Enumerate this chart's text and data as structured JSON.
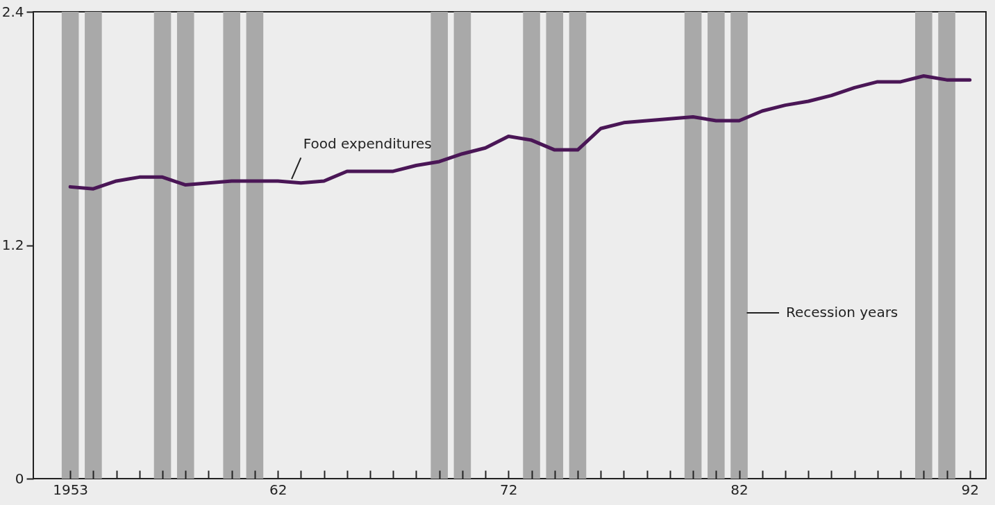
{
  "chart_data": {
    "type": "line",
    "x": [
      1953,
      1954,
      1955,
      1956,
      1957,
      1958,
      1959,
      1960,
      1961,
      1962,
      1963,
      1964,
      1965,
      1966,
      1967,
      1968,
      1969,
      1970,
      1971,
      1972,
      1973,
      1974,
      1975,
      1976,
      1977,
      1978,
      1979,
      1980,
      1981,
      1982,
      1983,
      1984,
      1985,
      1986,
      1987,
      1988,
      1989,
      1990,
      1991,
      1992
    ],
    "series": [
      {
        "name": "Food expenditures",
        "color": "#4a1656",
        "values": [
          1.5,
          1.49,
          1.53,
          1.55,
          1.55,
          1.51,
          1.52,
          1.53,
          1.53,
          1.53,
          1.52,
          1.53,
          1.58,
          1.58,
          1.58,
          1.61,
          1.63,
          1.67,
          1.7,
          1.76,
          1.74,
          1.69,
          1.69,
          1.8,
          1.83,
          1.84,
          1.85,
          1.86,
          1.84,
          1.84,
          1.89,
          1.92,
          1.94,
          1.97,
          2.01,
          2.04,
          2.04,
          2.07,
          2.05,
          2.05
        ]
      }
    ],
    "xlim": [
      1951.4,
      1992.7
    ],
    "xticks": [
      1953,
      {
        "value": 1954,
        "label": null
      },
      {
        "value": 1955,
        "label": null
      },
      {
        "value": 1956,
        "label": null
      },
      {
        "value": 1957,
        "label": null
      },
      {
        "value": 1958,
        "label": null
      },
      {
        "value": 1959,
        "label": null
      },
      {
        "value": 1960,
        "label": null
      },
      {
        "value": 1961,
        "label": null
      },
      {
        "value": 1962,
        "label": "62"
      },
      {
        "value": 1963,
        "label": null
      },
      {
        "value": 1964,
        "label": null
      },
      {
        "value": 1965,
        "label": null
      },
      {
        "value": 1966,
        "label": null
      },
      {
        "value": 1967,
        "label": null
      },
      {
        "value": 1968,
        "label": null
      },
      {
        "value": 1969,
        "label": null
      },
      {
        "value": 1970,
        "label": null
      },
      {
        "value": 1971,
        "label": null
      },
      {
        "value": 1972,
        "label": "72"
      },
      {
        "value": 1973,
        "label": null
      },
      {
        "value": 1974,
        "label": null
      },
      {
        "value": 1975,
        "label": null
      },
      {
        "value": 1976,
        "label": null
      },
      {
        "value": 1977,
        "label": null
      },
      {
        "value": 1978,
        "label": null
      },
      {
        "value": 1979,
        "label": null
      },
      {
        "value": 1980,
        "label": null
      },
      {
        "value": 1981,
        "label": null
      },
      {
        "value": 1982,
        "label": "82"
      },
      {
        "value": 1983,
        "label": null
      },
      {
        "value": 1984,
        "label": null
      },
      {
        "value": 1985,
        "label": null
      },
      {
        "value": 1986,
        "label": null
      },
      {
        "value": 1987,
        "label": null
      },
      {
        "value": 1988,
        "label": null
      },
      {
        "value": 1989,
        "label": null
      },
      {
        "value": 1990,
        "label": null
      },
      {
        "value": 1991,
        "label": null
      },
      {
        "value": 1992,
        "label": "92"
      }
    ],
    "ylim": [
      0,
      2.4
    ],
    "yticks": [
      0,
      1.2,
      2.4
    ],
    "bands": [
      {
        "axis": "x",
        "from": 1952.63,
        "to": 1953.37,
        "color": "#a9a9a9"
      },
      {
        "axis": "x",
        "from": 1953.63,
        "to": 1954.37,
        "color": "#a9a9a9"
      },
      {
        "axis": "x",
        "from": 1956.63,
        "to": 1957.37,
        "color": "#a9a9a9"
      },
      {
        "axis": "x",
        "from": 1957.63,
        "to": 1958.37,
        "color": "#a9a9a9"
      },
      {
        "axis": "x",
        "from": 1959.63,
        "to": 1960.37,
        "color": "#a9a9a9"
      },
      {
        "axis": "x",
        "from": 1960.63,
        "to": 1961.37,
        "color": "#a9a9a9"
      },
      {
        "axis": "x",
        "from": 1968.63,
        "to": 1969.37,
        "color": "#a9a9a9"
      },
      {
        "axis": "x",
        "from": 1969.63,
        "to": 1970.37,
        "color": "#a9a9a9"
      },
      {
        "axis": "x",
        "from": 1972.63,
        "to": 1973.37,
        "color": "#a9a9a9"
      },
      {
        "axis": "x",
        "from": 1973.63,
        "to": 1974.37,
        "color": "#a9a9a9"
      },
      {
        "axis": "x",
        "from": 1974.63,
        "to": 1975.37,
        "color": "#a9a9a9"
      },
      {
        "axis": "x",
        "from": 1979.63,
        "to": 1980.37,
        "color": "#a9a9a9"
      },
      {
        "axis": "x",
        "from": 1980.63,
        "to": 1981.37,
        "color": "#a9a9a9"
      },
      {
        "axis": "x",
        "from": 1981.63,
        "to": 1982.37,
        "color": "#a9a9a9"
      },
      {
        "axis": "x",
        "from": 1989.63,
        "to": 1990.37,
        "color": "#a9a9a9",
        "label": "Recession years"
      },
      {
        "axis": "x",
        "from": 1990.63,
        "to": 1991.37,
        "color": "#a9a9a9"
      }
    ]
  }
}
